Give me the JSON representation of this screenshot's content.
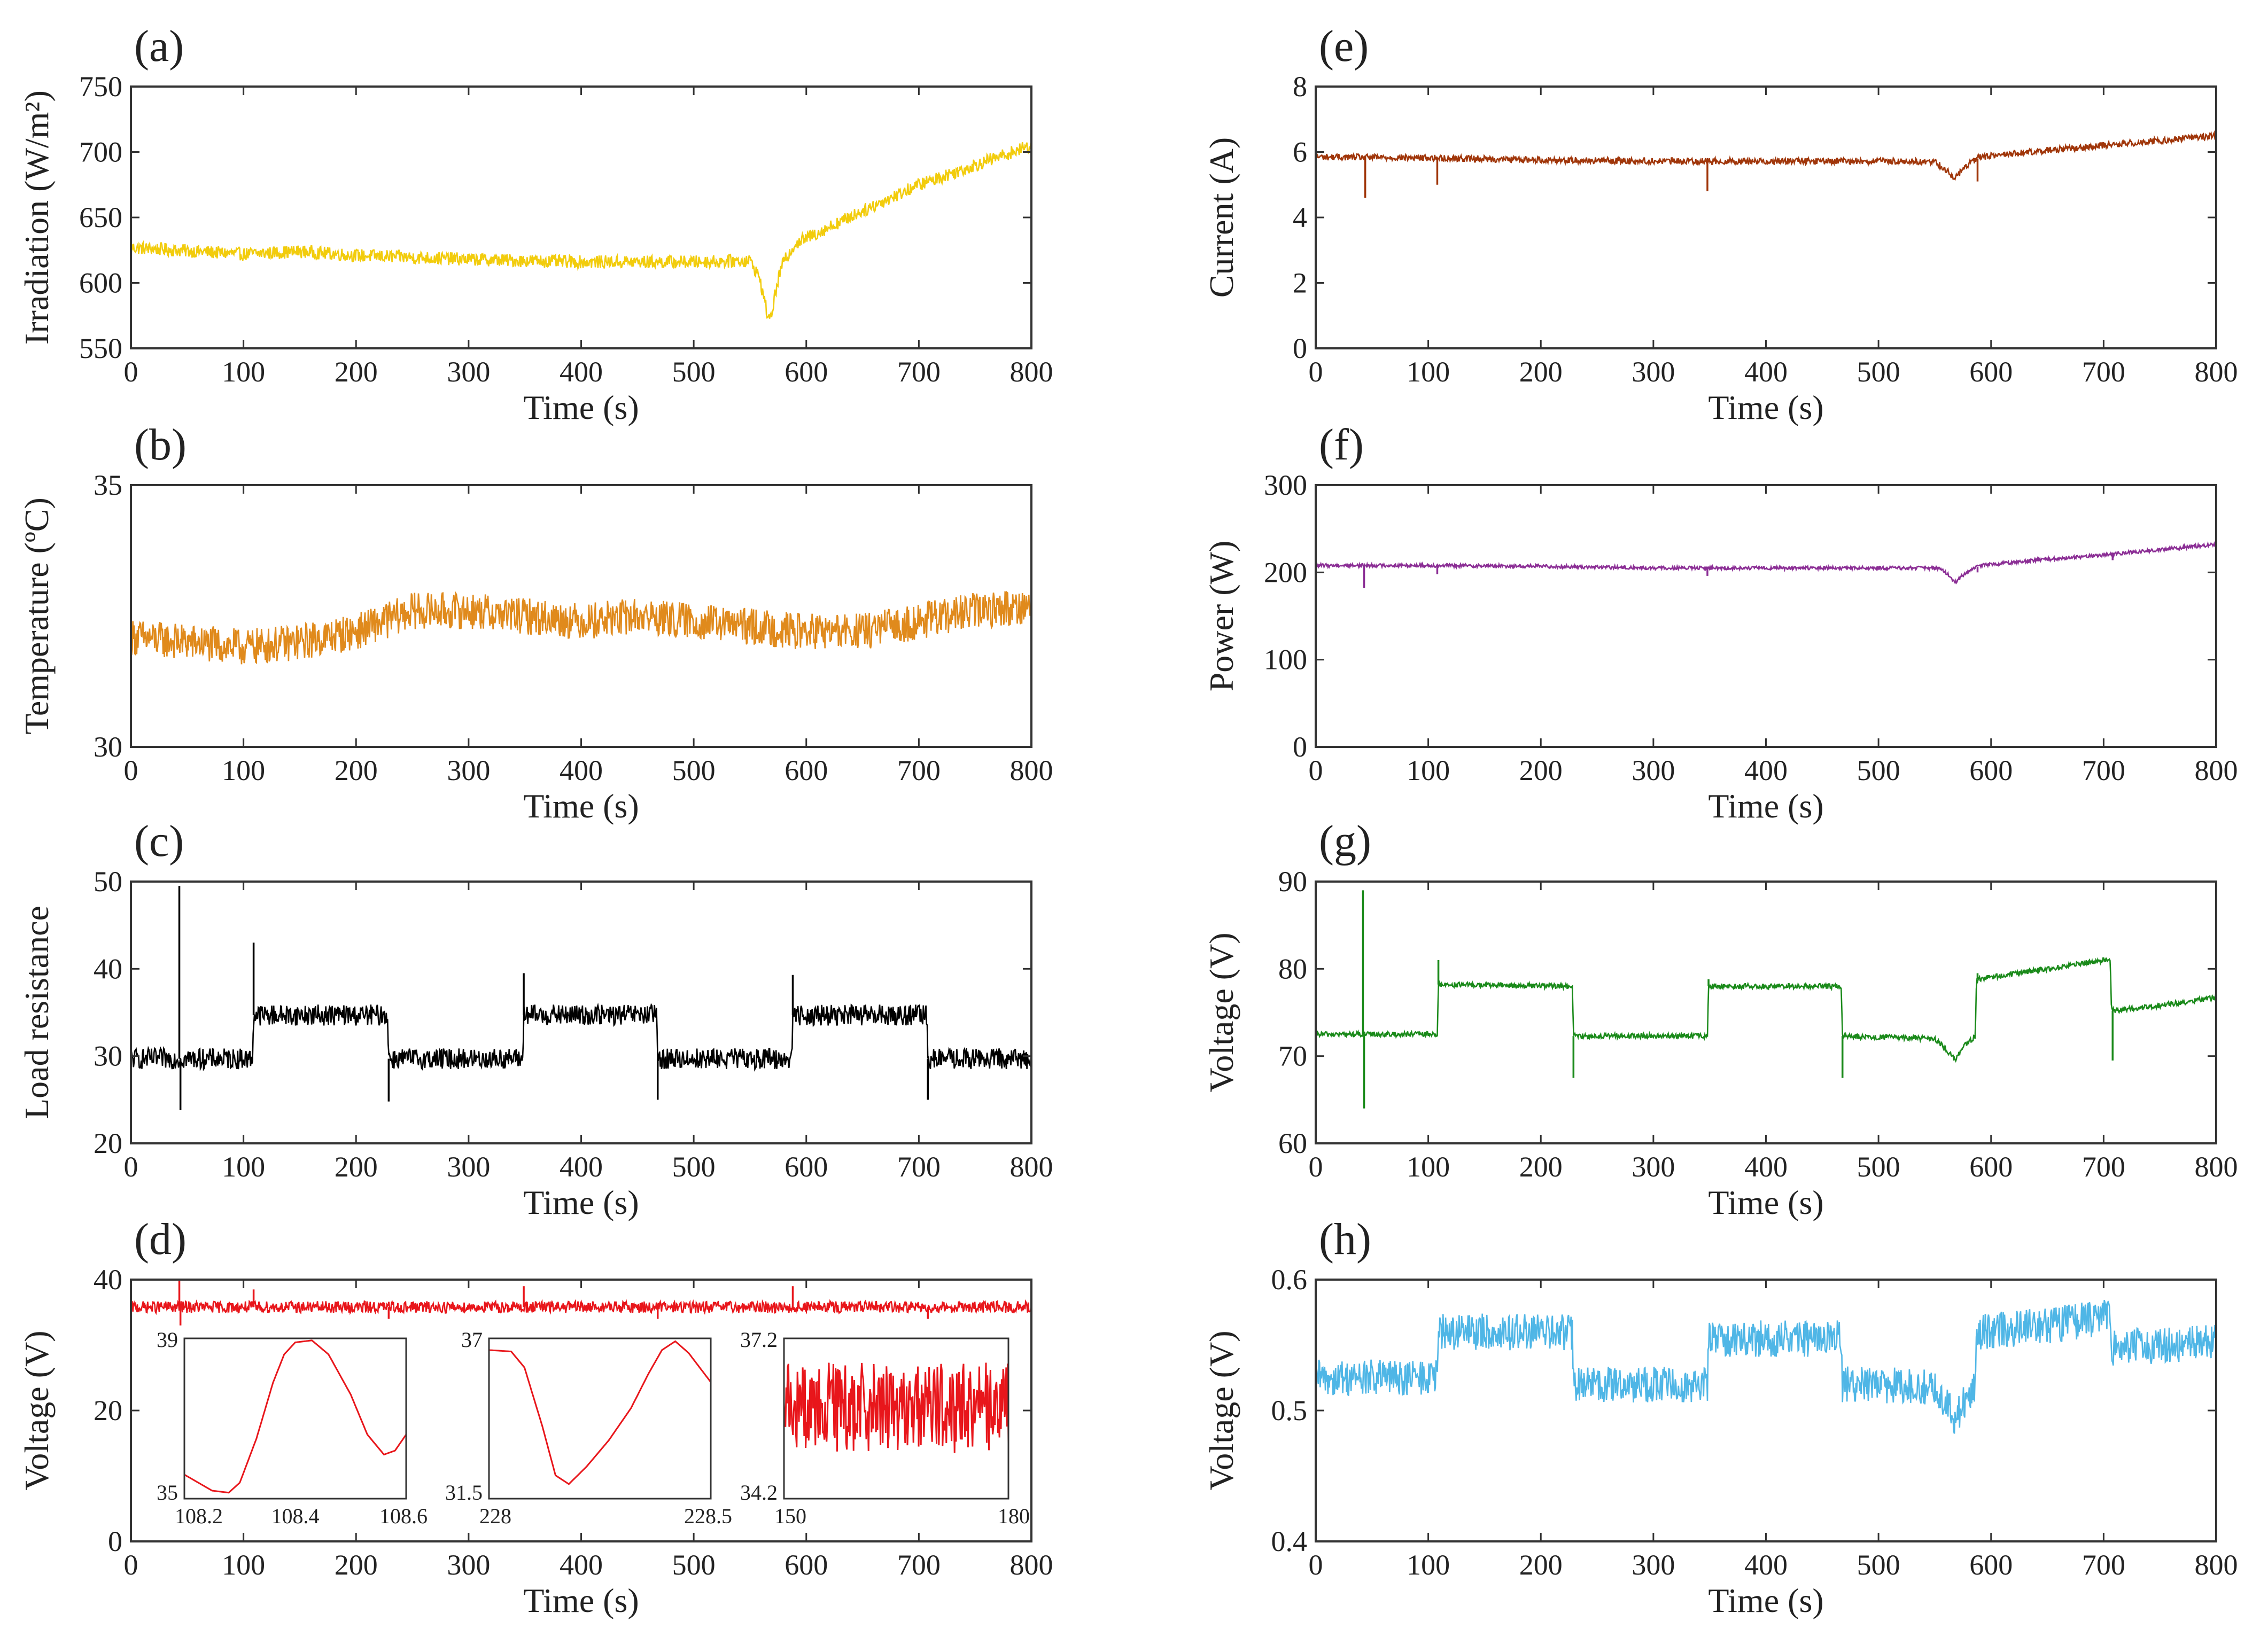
{
  "figure": {
    "panel_count": 8
  },
  "chart_data": [
    {
      "id": "a",
      "panel_label": "(a)",
      "type": "line",
      "xlabel": "Time (s)",
      "ylabel": "Irradiation (W/m²)",
      "xlim": [
        0,
        800
      ],
      "ylim": [
        550,
        750
      ],
      "xticks": [
        "0",
        "100",
        "200",
        "300",
        "400",
        "500",
        "600",
        "700",
        "800"
      ],
      "yticks": [
        "550",
        "600",
        "650",
        "700",
        "750"
      ],
      "grid": false,
      "color": "#F2CC0C",
      "series": [
        {
          "name": "Irradiation",
          "noise": 5,
          "spikes": [],
          "keypoints": [
            [
              0,
              627
            ],
            [
              100,
              622
            ],
            [
              150,
              624
            ],
            [
              200,
              621
            ],
            [
              300,
              618
            ],
            [
              400,
              616
            ],
            [
              500,
              616
            ],
            [
              550,
              617
            ],
            [
              558,
              605
            ],
            [
              562,
              590
            ],
            [
              565,
              578
            ],
            [
              568,
              571
            ],
            [
              572,
              590
            ],
            [
              578,
              613
            ],
            [
              590,
              630
            ],
            [
              650,
              655
            ],
            [
              700,
              675
            ],
            [
              750,
              690
            ],
            [
              800,
              705
            ]
          ]
        }
      ]
    },
    {
      "id": "b",
      "panel_label": "(b)",
      "type": "line",
      "xlabel": "Time (s)",
      "ylabel": "Temperature (ºC)",
      "xlim": [
        0,
        800
      ],
      "ylim": [
        30,
        35
      ],
      "xticks": [
        "0",
        "100",
        "200",
        "300",
        "400",
        "500",
        "600",
        "700",
        "800"
      ],
      "yticks": [
        "30",
        "35"
      ],
      "grid": false,
      "color": "#E08A1C",
      "series": [
        {
          "name": "Temperature",
          "noise": 0.35,
          "spikes": [],
          "keypoints": [
            [
              0,
              32.1
            ],
            [
              50,
              32.0
            ],
            [
              100,
              31.9
            ],
            [
              150,
              32.0
            ],
            [
              200,
              32.2
            ],
            [
              250,
              32.6
            ],
            [
              300,
              32.6
            ],
            [
              350,
              32.5
            ],
            [
              400,
              32.4
            ],
            [
              450,
              32.5
            ],
            [
              500,
              32.4
            ],
            [
              550,
              32.3
            ],
            [
              600,
              32.2
            ],
            [
              650,
              32.2
            ],
            [
              700,
              32.4
            ],
            [
              750,
              32.6
            ],
            [
              800,
              32.7
            ]
          ]
        }
      ]
    },
    {
      "id": "c",
      "panel_label": "(c)",
      "type": "line",
      "xlabel": "Time (s)",
      "ylabel": "Load resistance",
      "xlim": [
        0,
        800
      ],
      "ylim": [
        20,
        50
      ],
      "xticks": [
        "0",
        "100",
        "200",
        "300",
        "400",
        "500",
        "600",
        "700",
        "800"
      ],
      "yticks": [
        "20",
        "30",
        "40",
        "50"
      ],
      "grid": false,
      "color": "#000000",
      "series": [
        {
          "name": "Load resistance",
          "noise": 1.2,
          "keypoints": [
            [
              0,
              29.7
            ],
            [
              108,
              29.7
            ],
            [
              109,
              34.7
            ],
            [
              228,
              34.7
            ],
            [
              229,
              29.7
            ],
            [
              348,
              29.7
            ],
            [
              349,
              34.7
            ],
            [
              467,
              34.7
            ],
            [
              468,
              29.7
            ],
            [
              587,
              29.7
            ],
            [
              588,
              34.7
            ],
            [
              707,
              34.7
            ],
            [
              708,
              29.7
            ],
            [
              800,
              29.7
            ]
          ],
          "spikes": [
            [
              43,
              49.5
            ],
            [
              44,
              23.8
            ],
            [
              109,
              43.0
            ],
            [
              229,
              24.8
            ],
            [
              349,
              39.5
            ],
            [
              468,
              25.0
            ],
            [
              588,
              39.3
            ],
            [
              708,
              25.0
            ]
          ]
        }
      ]
    },
    {
      "id": "d",
      "panel_label": "(d)",
      "type": "line",
      "xlabel": "Time (s)",
      "ylabel": "Voltage (V)",
      "xlim": [
        0,
        800
      ],
      "ylim": [
        0,
        40
      ],
      "xticks": [
        "0",
        "100",
        "200",
        "300",
        "400",
        "500",
        "600",
        "700",
        "800"
      ],
      "yticks": [
        "0",
        "20",
        "40"
      ],
      "grid": false,
      "color": "#E8161B",
      "series": [
        {
          "name": "Voltage",
          "noise": 0.9,
          "keypoints": [
            [
              0,
              35.8
            ],
            [
              800,
              35.8
            ]
          ],
          "spikes": [
            [
              43,
              39.8
            ],
            [
              44,
              33.0
            ],
            [
              109,
              38.5
            ],
            [
              229,
              34.0
            ],
            [
              349,
              39.0
            ],
            [
              468,
              34.0
            ],
            [
              588,
              39.0
            ],
            [
              708,
              34.0
            ]
          ]
        }
      ],
      "insets": [
        {
          "type": "line",
          "xlim": [
            108.2,
            108.6
          ],
          "ylim": [
            35,
            39
          ],
          "xticks": [
            "108.2",
            "108.4",
            "108.6"
          ],
          "yticks": [
            "35",
            "39"
          ],
          "noise": 0,
          "points": [
            [
              108.2,
              35.6
            ],
            [
              108.25,
              35.2
            ],
            [
              108.28,
              35.15
            ],
            [
              108.3,
              35.4
            ],
            [
              108.33,
              36.5
            ],
            [
              108.36,
              37.9
            ],
            [
              108.38,
              38.6
            ],
            [
              108.4,
              38.9
            ],
            [
              108.43,
              38.95
            ],
            [
              108.46,
              38.6
            ],
            [
              108.5,
              37.6
            ],
            [
              108.53,
              36.6
            ],
            [
              108.56,
              36.1
            ],
            [
              108.58,
              36.2
            ],
            [
              108.6,
              36.6
            ]
          ]
        },
        {
          "type": "line",
          "xlim": [
            228,
            228.5
          ],
          "ylim": [
            31.5,
            37
          ],
          "xticks": [
            "228",
            "",
            "228.5"
          ],
          "yticks": [
            "31.5",
            "37"
          ],
          "noise": 0,
          "points": [
            [
              228,
              36.6
            ],
            [
              228.05,
              36.55
            ],
            [
              228.08,
              36.0
            ],
            [
              228.12,
              34.0
            ],
            [
              228.15,
              32.3
            ],
            [
              228.18,
              32.0
            ],
            [
              228.22,
              32.6
            ],
            [
              228.27,
              33.5
            ],
            [
              228.32,
              34.6
            ],
            [
              228.36,
              35.8
            ],
            [
              228.39,
              36.6
            ],
            [
              228.42,
              36.9
            ],
            [
              228.45,
              36.5
            ],
            [
              228.5,
              35.5
            ]
          ]
        },
        {
          "type": "line",
          "xlim": [
            150,
            180
          ],
          "ylim": [
            34.2,
            37.2
          ],
          "xticks": [
            "150",
            "",
            "180"
          ],
          "yticks": [
            "34.2",
            "37.2"
          ],
          "noise": 0.85,
          "points": [
            [
              150,
              35.9
            ],
            [
              180,
              35.9
            ]
          ]
        }
      ]
    },
    {
      "id": "e",
      "panel_label": "(e)",
      "type": "line",
      "xlabel": "Time (s)",
      "ylabel": "Current (A)",
      "xlim": [
        0,
        800
      ],
      "ylim": [
        0,
        8
      ],
      "xticks": [
        "0",
        "100",
        "200",
        "300",
        "400",
        "500",
        "600",
        "700",
        "800"
      ],
      "yticks": [
        "0",
        "2",
        "4",
        "6",
        "8"
      ],
      "grid": false,
      "color": "#A0360A",
      "series": [
        {
          "name": "Current",
          "noise": 0.1,
          "keypoints": [
            [
              0,
              5.85
            ],
            [
              100,
              5.82
            ],
            [
              200,
              5.76
            ],
            [
              300,
              5.72
            ],
            [
              400,
              5.72
            ],
            [
              500,
              5.72
            ],
            [
              550,
              5.7
            ],
            [
              562,
              5.4
            ],
            [
              568,
              5.18
            ],
            [
              575,
              5.5
            ],
            [
              590,
              5.85
            ],
            [
              650,
              6.05
            ],
            [
              700,
              6.2
            ],
            [
              750,
              6.35
            ],
            [
              800,
              6.5
            ]
          ],
          "spikes": [
            [
              44,
              4.6
            ],
            [
              108,
              5.0
            ],
            [
              348,
              4.8
            ],
            [
              588,
              5.1
            ]
          ]
        }
      ]
    },
    {
      "id": "f",
      "panel_label": "(f)",
      "type": "line",
      "xlabel": "Time (s)",
      "ylabel": "Power (W)",
      "xlim": [
        0,
        800
      ],
      "ylim": [
        0,
        300
      ],
      "xticks": [
        "0",
        "100",
        "200",
        "300",
        "400",
        "500",
        "600",
        "700",
        "800"
      ],
      "yticks": [
        "0",
        "100",
        "200",
        "300"
      ],
      "grid": false,
      "color": "#8B2E95",
      "series": [
        {
          "name": "Power",
          "noise": 2,
          "keypoints": [
            [
              0,
              208
            ],
            [
              100,
              208
            ],
            [
              200,
              207
            ],
            [
              300,
              205
            ],
            [
              400,
              205
            ],
            [
              500,
              205
            ],
            [
              555,
              205
            ],
            [
              562,
              197
            ],
            [
              568,
              188
            ],
            [
              575,
              197
            ],
            [
              590,
              208
            ],
            [
              650,
              215
            ],
            [
              700,
              220
            ],
            [
              750,
              226
            ],
            [
              800,
              232
            ]
          ],
          "spikes": [
            [
              43,
              182
            ],
            [
              108,
              198
            ],
            [
              348,
              196
            ],
            [
              588,
              200
            ],
            [
              708,
              214
            ]
          ]
        }
      ]
    },
    {
      "id": "g",
      "panel_label": "(g)",
      "type": "line",
      "xlabel": "Time (s)",
      "ylabel": "Voltage (V)",
      "xlim": [
        0,
        800
      ],
      "ylim": [
        60,
        90
      ],
      "xticks": [
        "0",
        "100",
        "200",
        "300",
        "400",
        "500",
        "600",
        "700",
        "800"
      ],
      "yticks": [
        "60",
        "70",
        "80",
        "90"
      ],
      "grid": false,
      "color": "#1A8A1A",
      "series": [
        {
          "name": "Voltage",
          "noise": 0.3,
          "keypoints": [
            [
              0,
              72.5
            ],
            [
              108,
              72.5
            ],
            [
              109,
              78.2
            ],
            [
              228,
              78.0
            ],
            [
              229,
              72.3
            ],
            [
              348,
              72.3
            ],
            [
              349,
              78.0
            ],
            [
              467,
              78.0
            ],
            [
              468,
              72.3
            ],
            [
              550,
              72.0
            ],
            [
              562,
              70.5
            ],
            [
              568,
              69.5
            ],
            [
              575,
              71.0
            ],
            [
              586,
              72.3
            ],
            [
              587,
              78.8
            ],
            [
              650,
              80.0
            ],
            [
              700,
              81.0
            ],
            [
              706,
              81.0
            ],
            [
              707,
              75.2
            ],
            [
              750,
              75.8
            ],
            [
              800,
              76.7
            ]
          ],
          "spikes": [
            [
              42,
              89.0
            ],
            [
              43,
              64.0
            ],
            [
              109,
              81.0
            ],
            [
              229,
              67.5
            ],
            [
              349,
              78.8
            ],
            [
              468,
              67.5
            ],
            [
              588,
              79.5
            ],
            [
              708,
              69.5
            ]
          ]
        }
      ]
    },
    {
      "id": "h",
      "panel_label": "(h)",
      "type": "line",
      "xlabel": "Time (s)",
      "ylabel": "Voltage (V)",
      "xlim": [
        0,
        800
      ],
      "ylim": [
        0.4,
        0.6
      ],
      "xticks": [
        "0",
        "100",
        "200",
        "300",
        "400",
        "500",
        "600",
        "700",
        "800"
      ],
      "yticks": [
        "0.4",
        "0.5",
        "0.6"
      ],
      "grid": false,
      "color": "#4FB6E6",
      "series": [
        {
          "name": "Voltage",
          "noise": 0.014,
          "spikes": [],
          "keypoints": [
            [
              0,
              0.525
            ],
            [
              108,
              0.525
            ],
            [
              109,
              0.56
            ],
            [
              228,
              0.56
            ],
            [
              229,
              0.52
            ],
            [
              348,
              0.52
            ],
            [
              349,
              0.555
            ],
            [
              467,
              0.555
            ],
            [
              468,
              0.52
            ],
            [
              550,
              0.518
            ],
            [
              562,
              0.505
            ],
            [
              568,
              0.492
            ],
            [
              575,
              0.505
            ],
            [
              586,
              0.52
            ],
            [
              587,
              0.56
            ],
            [
              650,
              0.565
            ],
            [
              706,
              0.572
            ],
            [
              707,
              0.548
            ],
            [
              800,
              0.552
            ]
          ]
        }
      ]
    }
  ]
}
